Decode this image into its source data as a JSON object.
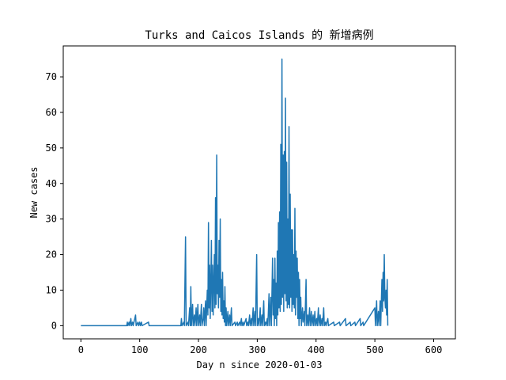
{
  "chart_data": {
    "type": "line",
    "title": "Turks and Caicos Islands 的 新增病例",
    "xlabel": "Day n since 2020-01-03",
    "ylabel": "New cases",
    "xlim": [
      -30,
      637
    ],
    "ylim": [
      -3.7,
      78.7
    ],
    "xticks": [
      0,
      100,
      200,
      300,
      400,
      500,
      600
    ],
    "yticks": [
      0,
      10,
      20,
      30,
      40,
      50,
      60,
      70
    ],
    "grid": false,
    "legend": "none",
    "series": [
      {
        "color": "#1f77b4",
        "points": [
          [
            0,
            0
          ],
          [
            78,
            0
          ],
          [
            79,
            1
          ],
          [
            80,
            0
          ],
          [
            82,
            1
          ],
          [
            83,
            0
          ],
          [
            85,
            2
          ],
          [
            86,
            0
          ],
          [
            88,
            1
          ],
          [
            89,
            0
          ],
          [
            93,
            3
          ],
          [
            94,
            0
          ],
          [
            97,
            1
          ],
          [
            98,
            0
          ],
          [
            100,
            1
          ],
          [
            101,
            0
          ],
          [
            103,
            1
          ],
          [
            104,
            0
          ],
          [
            115,
            1
          ],
          [
            116,
            0
          ],
          [
            170,
            0
          ],
          [
            171,
            2
          ],
          [
            172,
            0
          ],
          [
            175,
            1
          ],
          [
            176,
            0
          ],
          [
            178,
            25
          ],
          [
            179,
            0
          ],
          [
            182,
            1
          ],
          [
            183,
            0
          ],
          [
            185,
            5
          ],
          [
            186,
            0
          ],
          [
            187,
            11
          ],
          [
            188,
            0
          ],
          [
            190,
            6
          ],
          [
            191,
            0
          ],
          [
            193,
            3
          ],
          [
            194,
            0
          ],
          [
            196,
            5
          ],
          [
            197,
            0
          ],
          [
            199,
            6
          ],
          [
            200,
            0
          ],
          [
            202,
            3
          ],
          [
            203,
            0
          ],
          [
            205,
            6
          ],
          [
            206,
            0
          ],
          [
            208,
            2
          ],
          [
            209,
            5
          ],
          [
            210,
            0
          ],
          [
            212,
            7
          ],
          [
            213,
            0
          ],
          [
            215,
            10
          ],
          [
            216,
            3
          ],
          [
            217,
            29
          ],
          [
            218,
            5
          ],
          [
            219,
            17
          ],
          [
            220,
            2
          ],
          [
            221,
            12
          ],
          [
            222,
            24
          ],
          [
            223,
            4
          ],
          [
            224,
            17
          ],
          [
            225,
            3
          ],
          [
            226,
            12
          ],
          [
            227,
            20
          ],
          [
            228,
            5
          ],
          [
            229,
            36
          ],
          [
            230,
            6
          ],
          [
            231,
            48
          ],
          [
            232,
            9
          ],
          [
            233,
            17
          ],
          [
            234,
            5
          ],
          [
            235,
            24
          ],
          [
            236,
            8
          ],
          [
            237,
            30
          ],
          [
            238,
            4
          ],
          [
            239,
            13
          ],
          [
            240,
            3
          ],
          [
            241,
            15
          ],
          [
            242,
            2
          ],
          [
            243,
            7
          ],
          [
            244,
            1
          ],
          [
            245,
            11
          ],
          [
            246,
            0
          ],
          [
            247,
            5
          ],
          [
            248,
            0
          ],
          [
            250,
            4
          ],
          [
            251,
            0
          ],
          [
            253,
            3
          ],
          [
            254,
            0
          ],
          [
            256,
            5
          ],
          [
            257,
            0
          ],
          [
            262,
            1
          ],
          [
            263,
            0
          ],
          [
            266,
            1
          ],
          [
            267,
            0
          ],
          [
            270,
            1
          ],
          [
            271,
            0
          ],
          [
            273,
            2
          ],
          [
            274,
            0
          ],
          [
            276,
            1
          ],
          [
            277,
            0
          ],
          [
            281,
            2
          ],
          [
            282,
            0
          ],
          [
            284,
            1
          ],
          [
            285,
            0
          ],
          [
            287,
            3
          ],
          [
            288,
            0
          ],
          [
            290,
            2
          ],
          [
            291,
            0
          ],
          [
            293,
            5
          ],
          [
            294,
            0
          ],
          [
            296,
            4
          ],
          [
            297,
            0
          ],
          [
            299,
            20
          ],
          [
            300,
            0
          ],
          [
            302,
            2
          ],
          [
            303,
            0
          ],
          [
            305,
            5
          ],
          [
            306,
            0
          ],
          [
            308,
            3
          ],
          [
            309,
            0
          ],
          [
            311,
            7
          ],
          [
            312,
            0
          ],
          [
            314,
            1
          ],
          [
            315,
            0
          ],
          [
            317,
            2
          ],
          [
            318,
            0
          ],
          [
            320,
            9
          ],
          [
            321,
            0
          ],
          [
            323,
            8
          ],
          [
            324,
            0
          ],
          [
            326,
            19
          ],
          [
            327,
            3
          ],
          [
            328,
            13
          ],
          [
            329,
            0
          ],
          [
            330,
            19
          ],
          [
            331,
            2
          ],
          [
            332,
            12
          ],
          [
            333,
            0
          ],
          [
            334,
            21
          ],
          [
            335,
            3
          ],
          [
            336,
            29
          ],
          [
            337,
            5
          ],
          [
            338,
            32
          ],
          [
            339,
            4
          ],
          [
            340,
            51
          ],
          [
            341,
            6
          ],
          [
            342,
            75
          ],
          [
            343,
            8
          ],
          [
            344,
            48
          ],
          [
            345,
            4
          ],
          [
            346,
            49
          ],
          [
            347,
            9
          ],
          [
            348,
            64
          ],
          [
            349,
            7
          ],
          [
            350,
            46
          ],
          [
            351,
            5
          ],
          [
            352,
            30
          ],
          [
            353,
            6
          ],
          [
            354,
            56
          ],
          [
            355,
            5
          ],
          [
            356,
            37
          ],
          [
            357,
            8
          ],
          [
            358,
            27
          ],
          [
            359,
            4
          ],
          [
            360,
            27
          ],
          [
            361,
            6
          ],
          [
            362,
            20
          ],
          [
            363,
            5
          ],
          [
            364,
            33
          ],
          [
            365,
            3
          ],
          [
            366,
            21
          ],
          [
            367,
            8
          ],
          [
            368,
            19
          ],
          [
            369,
            2
          ],
          [
            370,
            15
          ],
          [
            371,
            0
          ],
          [
            372,
            13
          ],
          [
            373,
            2
          ],
          [
            374,
            8
          ],
          [
            375,
            0
          ],
          [
            377,
            5
          ],
          [
            378,
            1
          ],
          [
            380,
            4
          ],
          [
            381,
            0
          ],
          [
            383,
            13
          ],
          [
            384,
            0
          ],
          [
            386,
            3
          ],
          [
            387,
            0
          ],
          [
            389,
            5
          ],
          [
            390,
            0
          ],
          [
            392,
            4
          ],
          [
            393,
            0
          ],
          [
            395,
            3
          ],
          [
            396,
            0
          ],
          [
            398,
            4
          ],
          [
            399,
            0
          ],
          [
            401,
            2
          ],
          [
            402,
            0
          ],
          [
            404,
            5
          ],
          [
            405,
            0
          ],
          [
            407,
            3
          ],
          [
            408,
            0
          ],
          [
            410,
            2
          ],
          [
            411,
            0
          ],
          [
            413,
            5
          ],
          [
            414,
            0
          ],
          [
            416,
            1
          ],
          [
            417,
            0
          ],
          [
            420,
            2
          ],
          [
            421,
            0
          ],
          [
            430,
            1
          ],
          [
            431,
            0
          ],
          [
            440,
            1
          ],
          [
            441,
            0
          ],
          [
            450,
            2
          ],
          [
            451,
            0
          ],
          [
            458,
            1
          ],
          [
            459,
            0
          ],
          [
            466,
            1
          ],
          [
            467,
            0
          ],
          [
            475,
            2
          ],
          [
            476,
            0
          ],
          [
            480,
            1
          ],
          [
            481,
            0
          ],
          [
            500,
            5
          ],
          [
            501,
            0
          ],
          [
            503,
            7
          ],
          [
            504,
            0
          ],
          [
            506,
            4
          ],
          [
            507,
            0
          ],
          [
            509,
            7
          ],
          [
            510,
            0
          ],
          [
            512,
            13
          ],
          [
            513,
            4
          ],
          [
            514,
            15
          ],
          [
            515,
            7
          ],
          [
            516,
            20
          ],
          [
            517,
            8
          ],
          [
            518,
            5
          ],
          [
            519,
            10
          ],
          [
            520,
            3
          ],
          [
            521,
            13
          ],
          [
            522,
            0
          ]
        ]
      }
    ]
  }
}
